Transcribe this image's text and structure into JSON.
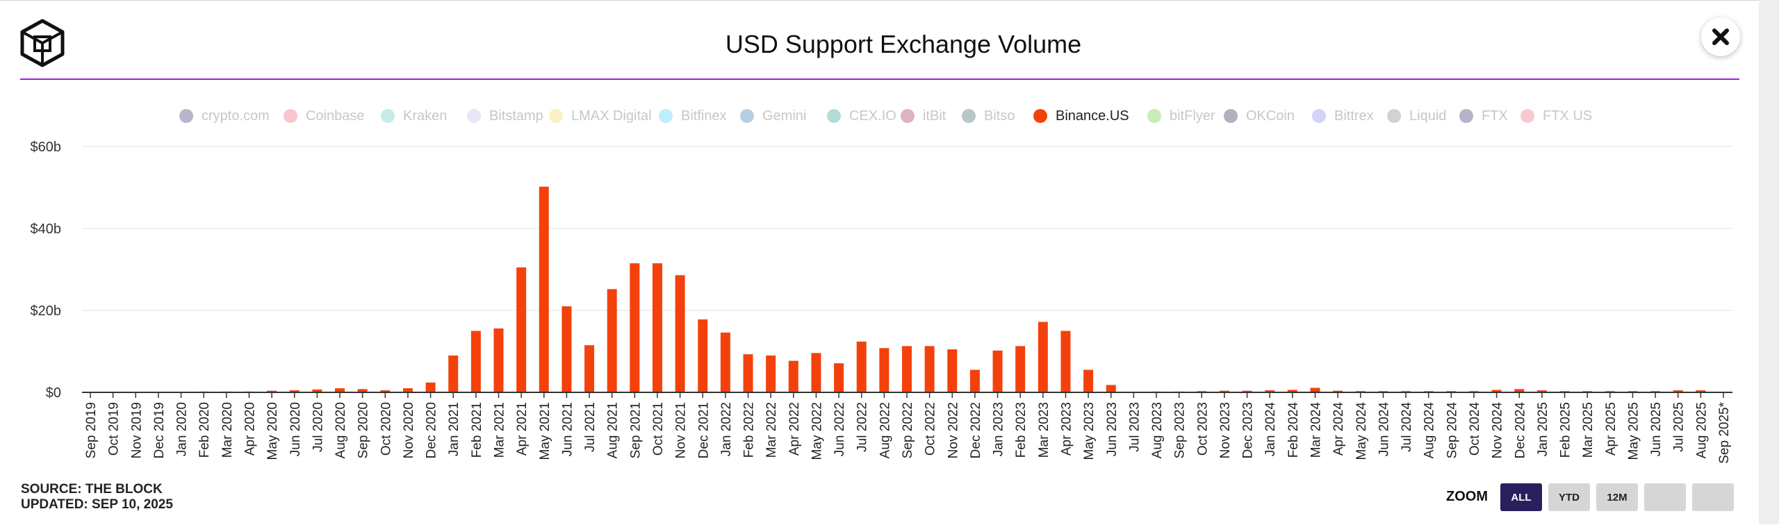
{
  "title": "USD Support Exchange Volume",
  "footer": {
    "source": "SOURCE: THE BLOCK",
    "updated": "UPDATED: SEP 10, 2025"
  },
  "zoom": {
    "label": "ZOOM",
    "buttons": [
      "ALL",
      "YTD",
      "12M",
      "",
      ""
    ],
    "active": "ALL"
  },
  "legend": [
    {
      "name": "crypto.com",
      "color": "#b8b6cc"
    },
    {
      "name": "Coinbase",
      "color": "#f7c6cf"
    },
    {
      "name": "Kraken",
      "color": "#c6ece8"
    },
    {
      "name": "Bitstamp",
      "color": "#e8e6f8"
    },
    {
      "name": "LMAX Digital",
      "color": "#fbf0c4"
    },
    {
      "name": "Bitfinex",
      "color": "#bdeefb"
    },
    {
      "name": "Gemini",
      "color": "#b7cfe0"
    },
    {
      "name": "CEX.IO",
      "color": "#b4dcd6"
    },
    {
      "name": "itBit",
      "color": "#dcb3c0"
    },
    {
      "name": "Bitso",
      "color": "#b7c6c6"
    },
    {
      "name": "Binance.US",
      "color": "#f4410b",
      "active": true
    },
    {
      "name": "bitFlyer",
      "color": "#c9ecb8"
    },
    {
      "name": "OKCoin",
      "color": "#b3b1c0"
    },
    {
      "name": "Bittrex",
      "color": "#d4d2f6"
    },
    {
      "name": "Liquid",
      "color": "#d2d2d2"
    },
    {
      "name": "FTX",
      "color": "#b5b3c9"
    },
    {
      "name": "FTX US",
      "color": "#f9c9d0"
    }
  ],
  "chart_data": {
    "type": "bar",
    "title": "USD Support Exchange Volume",
    "series": [
      {
        "name": "Binance.US",
        "color": "#f4410b"
      }
    ],
    "unit": "$b",
    "y_ticks": [
      "$0",
      "$20b",
      "$40b",
      "$60b"
    ],
    "ylim": [
      0,
      60
    ],
    "grid": true,
    "legend_position": "top",
    "categories": [
      "Sep 2019",
      "Oct 2019",
      "Nov 2019",
      "Dec 2019",
      "Jan 2020",
      "Feb 2020",
      "Mar 2020",
      "Apr 2020",
      "May 2020",
      "Jun 2020",
      "Jul 2020",
      "Aug 2020",
      "Sep 2020",
      "Oct 2020",
      "Nov 2020",
      "Dec 2020",
      "Jan 2021",
      "Feb 2021",
      "Mar 2021",
      "Apr 2021",
      "May 2021",
      "Jun 2021",
      "Jul 2021",
      "Aug 2021",
      "Sep 2021",
      "Oct 2021",
      "Nov 2021",
      "Dec 2021",
      "Jan 2022",
      "Feb 2022",
      "Mar 2022",
      "Apr 2022",
      "May 2022",
      "Jun 2022",
      "Jul 2022",
      "Aug 2022",
      "Sep 2022",
      "Oct 2022",
      "Nov 2022",
      "Dec 2022",
      "Jan 2023",
      "Feb 2023",
      "Mar 2023",
      "Apr 2023",
      "May 2023",
      "Jun 2023",
      "Jul 2023",
      "Aug 2023",
      "Sep 2023",
      "Oct 2023",
      "Nov 2023",
      "Dec 2023",
      "Jan 2024",
      "Feb 2024",
      "Mar 2024",
      "Apr 2024",
      "May 2024",
      "Jun 2024",
      "Jul 2024",
      "Aug 2024",
      "Sep 2024",
      "Oct 2024",
      "Nov 2024",
      "Dec 2024",
      "Jan 2025",
      "Feb 2025",
      "Mar 2025",
      "Apr 2025",
      "May 2025",
      "Jun 2025",
      "Jul 2025",
      "Aug 2025",
      "Sep 2025*"
    ],
    "values": [
      0,
      0.1,
      0,
      0,
      0.1,
      0.2,
      0.2,
      0.2,
      0.4,
      0.5,
      0.7,
      1.0,
      0.8,
      0.5,
      1.0,
      2.4,
      9.0,
      15.0,
      15.6,
      30.5,
      50.2,
      21.0,
      11.5,
      25.2,
      31.5,
      31.5,
      28.6,
      17.8,
      14.6,
      9.3,
      9.0,
      7.7,
      9.6,
      7.1,
      12.4,
      10.8,
      11.3,
      11.3,
      10.5,
      5.5,
      10.2,
      11.3,
      17.2,
      15.0,
      5.5,
      1.8,
      0.1,
      0.2,
      0.2,
      0.3,
      0.4,
      0.4,
      0.5,
      0.6,
      1.1,
      0.4,
      0.3,
      0.3,
      0.3,
      0.3,
      0.3,
      0.3,
      0.6,
      0.8,
      0.5,
      0.3,
      0.3,
      0.3,
      0.3,
      0.3,
      0.5,
      0.5,
      0
    ]
  }
}
